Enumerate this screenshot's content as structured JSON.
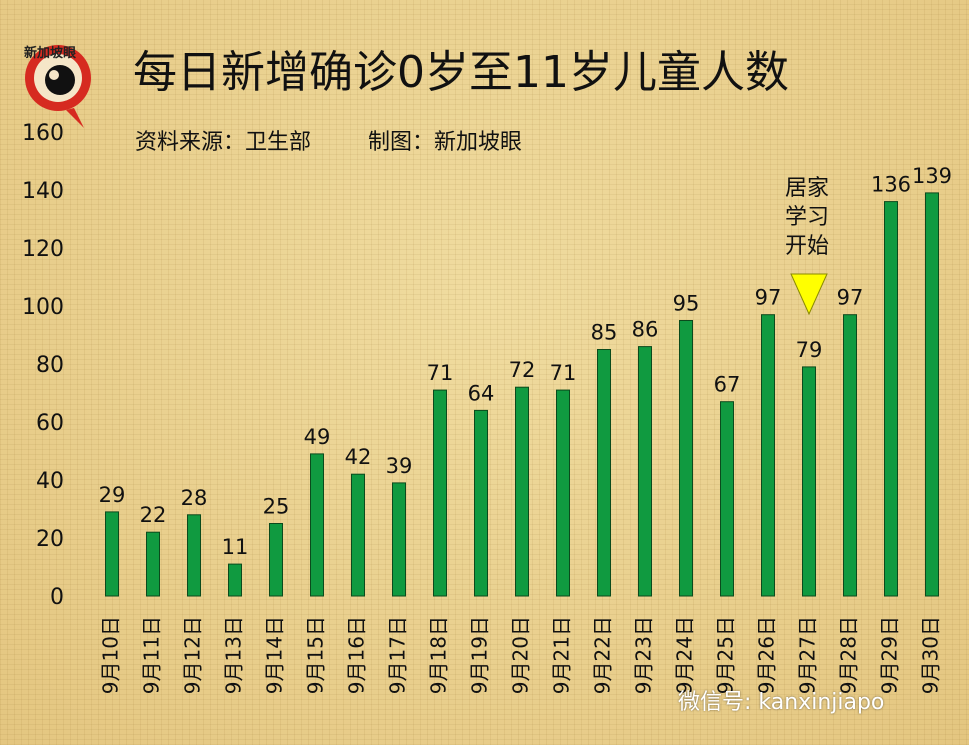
{
  "header": {
    "logo_text": "新加坡眼",
    "title": "每日新增确诊0岁至11岁儿童人数",
    "source": "资料来源：卫生部",
    "credit": "制图：新加坡眼"
  },
  "annotation": {
    "text": "居家学习开始",
    "lines": [
      "居家",
      "学习",
      "开始"
    ]
  },
  "watermark": "微信号: kanxinjiapo",
  "colors": {
    "bar": "#109a40",
    "bar_border": "#0b4a1c",
    "marker": "#ffff00"
  },
  "chart_data": {
    "type": "bar",
    "title": "每日新增确诊0岁至11岁儿童人数",
    "xlabel": "",
    "ylabel": "",
    "ylim": [
      0,
      160
    ],
    "yticks": [
      0,
      20,
      40,
      60,
      80,
      100,
      120,
      140,
      160
    ],
    "categories": [
      "9月10日",
      "9月11日",
      "9月12日",
      "9月13日",
      "9月14日",
      "9月15日",
      "9月16日",
      "9月17日",
      "9月18日",
      "9月19日",
      "9月20日",
      "9月21日",
      "9月22日",
      "9月23日",
      "9月24日",
      "9月25日",
      "9月26日",
      "9月27日",
      "9月28日",
      "9月29日",
      "9月30日"
    ],
    "values": [
      29,
      22,
      28,
      11,
      25,
      49,
      42,
      39,
      71,
      64,
      72,
      71,
      85,
      86,
      95,
      67,
      97,
      79,
      97,
      136,
      139
    ],
    "marker_category": "9月27日"
  }
}
